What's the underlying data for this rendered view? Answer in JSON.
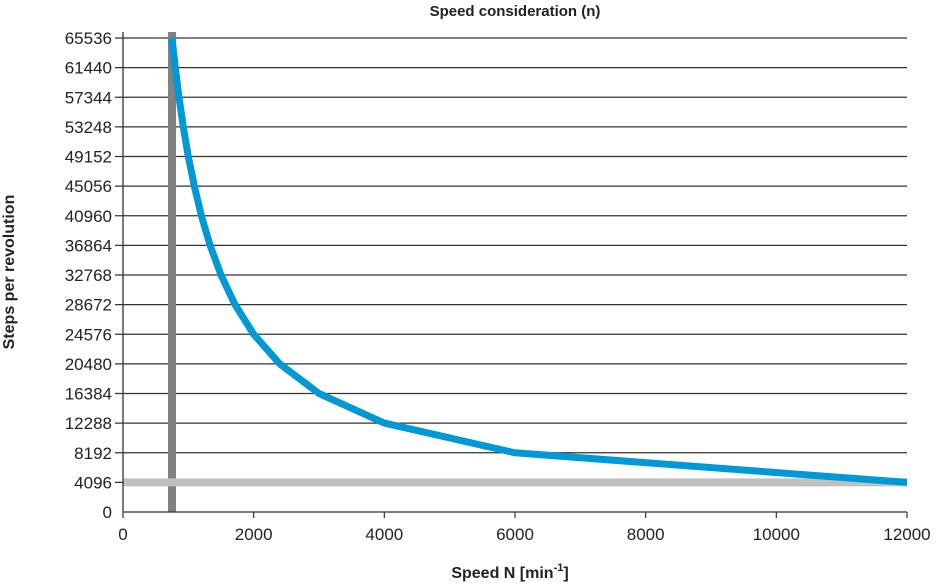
{
  "chart_data": {
    "type": "line",
    "title": "Speed consideration (n)",
    "xlabel": "Speed N [min",
    "xlabel_superscript": "-1",
    "xlabel_suffix": "]",
    "ylabel": "Steps per revolution",
    "xlim": [
      0,
      12000
    ],
    "ylim": [
      0,
      65536
    ],
    "xticks": [
      0,
      2000,
      4000,
      6000,
      8000,
      10000,
      12000
    ],
    "yticks": [
      0,
      4096,
      8192,
      12288,
      16384,
      20480,
      24576,
      28672,
      32768,
      36864,
      40960,
      45056,
      49152,
      53248,
      57344,
      61440,
      65536
    ],
    "grid": "horizontal",
    "series": [
      {
        "color": "#0099d6",
        "x": [
          750,
          800,
          857,
          923,
          1000,
          1091,
          1200,
          1333,
          1500,
          1714,
          2000,
          2400,
          3000,
          4000,
          6000,
          12000
        ],
        "y": [
          65536,
          61440,
          57344,
          53248,
          49152,
          45056,
          40960,
          36864,
          32768,
          28672,
          24576,
          20480,
          16384,
          12288,
          8192,
          4096
        ]
      }
    ],
    "reference_lines": [
      {
        "orientation": "vertical",
        "x": 750,
        "color": "#808085"
      },
      {
        "orientation": "horizontal",
        "y": 4096,
        "color": "#c0c0c0"
      }
    ]
  }
}
